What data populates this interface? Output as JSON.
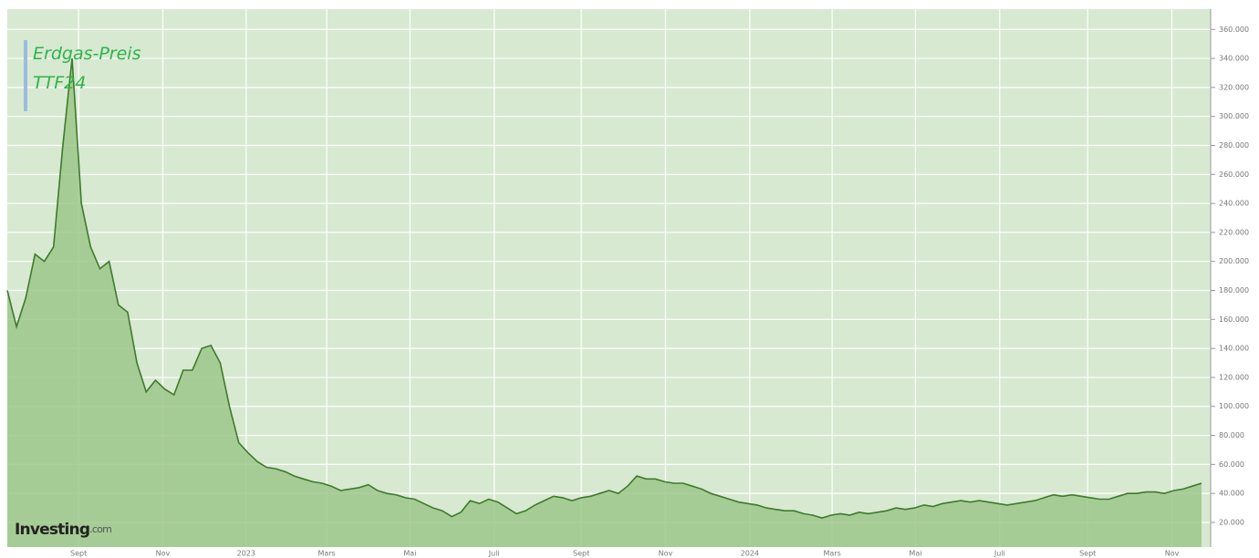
{
  "chart_data": {
    "type": "area",
    "title": [
      "Erdgas-Preis",
      "TTF24"
    ],
    "logo": [
      "Investing",
      "com"
    ],
    "line_color": "#3f7a2b",
    "fill_color": "#9dc78c",
    "grid": true,
    "x": [
      0,
      1,
      2,
      3,
      4,
      5,
      6,
      7,
      8,
      9,
      10,
      11,
      12,
      13,
      14,
      15,
      16,
      17,
      18,
      19,
      20,
      21,
      22,
      23,
      24,
      25,
      26,
      27,
      28,
      29,
      30,
      31,
      32,
      33,
      34,
      35,
      36,
      37,
      38,
      39,
      40,
      41,
      42,
      43,
      44,
      45,
      46,
      47,
      48,
      49,
      50,
      51,
      52,
      53,
      54,
      55,
      56,
      57,
      58,
      59,
      60,
      61,
      62,
      63,
      64,
      65,
      66,
      67,
      68,
      69,
      70,
      71,
      72,
      73,
      74,
      75,
      76,
      77,
      78,
      79,
      80,
      81,
      82,
      83,
      84,
      85,
      86,
      87,
      88,
      89,
      90,
      91,
      92,
      93,
      94,
      95,
      96,
      97,
      98,
      99,
      100,
      101,
      102,
      103,
      104,
      105,
      106,
      107,
      108,
      109,
      110,
      111,
      112,
      113,
      114,
      115,
      116,
      117,
      118,
      119,
      120,
      121,
      122,
      123,
      124,
      125,
      126,
      127,
      128,
      129
    ],
    "values": [
      180,
      155,
      175,
      205,
      200,
      210,
      280,
      340,
      240,
      210,
      195,
      200,
      170,
      165,
      130,
      110,
      118,
      112,
      108,
      125,
      125,
      140,
      142,
      130,
      100,
      75,
      68,
      62,
      58,
      57,
      55,
      52,
      50,
      48,
      47,
      45,
      42,
      43,
      44,
      46,
      42,
      40,
      39,
      37,
      36,
      33,
      30,
      28,
      24,
      27,
      35,
      33,
      36,
      34,
      30,
      26,
      28,
      32,
      35,
      38,
      37,
      35,
      37,
      38,
      40,
      42,
      40,
      45,
      52,
      50,
      50,
      48,
      47,
      47,
      45,
      43,
      40,
      38,
      36,
      34,
      33,
      32,
      30,
      29,
      28,
      28,
      26,
      25,
      23,
      25,
      26,
      25,
      27,
      26,
      27,
      28,
      30,
      29,
      30,
      32,
      31,
      33,
      34,
      35,
      34,
      35,
      34,
      33,
      32,
      33,
      34,
      35,
      37,
      39,
      38,
      39,
      38,
      37,
      36,
      36,
      38,
      40,
      40,
      41,
      41,
      40,
      42,
      43,
      45,
      47
    ],
    "xlim": [
      0,
      129
    ],
    "xticks": [
      {
        "value": 7.7,
        "label": "Sept"
      },
      {
        "value": 16.8,
        "label": "Nov"
      },
      {
        "value": 25.8,
        "label": "2023"
      },
      {
        "value": 34.5,
        "label": "Mars"
      },
      {
        "value": 43.5,
        "label": "Mai"
      },
      {
        "value": 52.6,
        "label": "Juli"
      },
      {
        "value": 62,
        "label": "Sept"
      },
      {
        "value": 71.1,
        "label": "Nov"
      },
      {
        "value": 80.2,
        "label": "2024"
      },
      {
        "value": 89.1,
        "label": "Mars"
      },
      {
        "value": 98.1,
        "label": "Mai"
      },
      {
        "value": 107.2,
        "label": "Juli"
      },
      {
        "value": 116.7,
        "label": "Sept"
      },
      {
        "value": 125.8,
        "label": "Nov"
      }
    ],
    "ylim": [
      3,
      374
    ],
    "yticks": [
      {
        "value": 20,
        "label": "20.000"
      },
      {
        "value": 40,
        "label": "40.000"
      },
      {
        "value": 60,
        "label": "60.000"
      },
      {
        "value": 80,
        "label": "80.000"
      },
      {
        "value": 100,
        "label": "100.000"
      },
      {
        "value": 120,
        "label": "120.000"
      },
      {
        "value": 140,
        "label": "140.000"
      },
      {
        "value": 160,
        "label": "160.000"
      },
      {
        "value": 180,
        "label": "180.000"
      },
      {
        "value": 200,
        "label": "200.000"
      },
      {
        "value": 220,
        "label": "220.000"
      },
      {
        "value": 240,
        "label": "240.000"
      },
      {
        "value": 260,
        "label": "260.000"
      },
      {
        "value": 280,
        "label": "280.000"
      },
      {
        "value": 300,
        "label": "300.000"
      },
      {
        "value": 320,
        "label": "320.000"
      },
      {
        "value": 340,
        "label": "340.000"
      },
      {
        "value": 360,
        "label": "360.000"
      }
    ]
  }
}
